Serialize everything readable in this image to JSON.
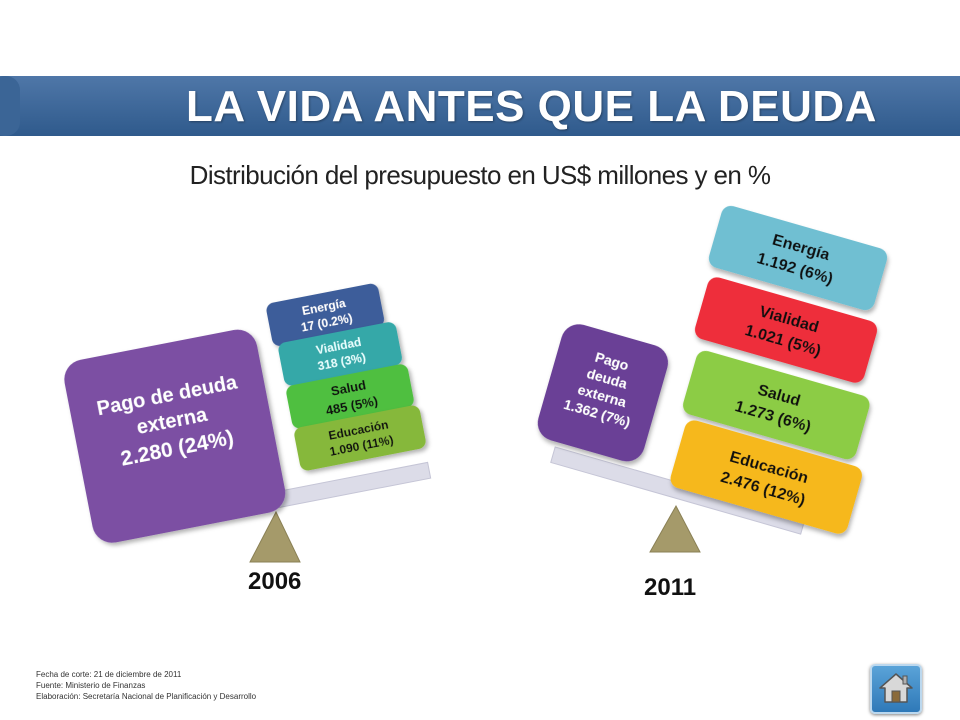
{
  "header": {
    "title": "LA VIDA ANTES QUE LA DEUDA",
    "subtitle": "Distribución del presupuesto en US$ millones y en %"
  },
  "scale_2006": {
    "year": "2006",
    "blocks": [
      {
        "line1": "Pago de deuda",
        "line2": "externa",
        "line3": "2.280 (24%)",
        "color": "#7b4fa3"
      },
      {
        "line1": "Energía",
        "line2": "17  (0.2%)",
        "color": "#3e5d9a"
      },
      {
        "line1": "Vialidad",
        "line2": "318   (3%)",
        "color": "#36a8a8"
      },
      {
        "line1": "Salud",
        "line2": "485   (5%)",
        "color": "#4fbf40"
      },
      {
        "line1": "Educación",
        "line2": "1.090  (11%)",
        "color": "#86b83a"
      }
    ]
  },
  "scale_2011": {
    "year": "2011",
    "blocks": [
      {
        "line1": "Pago",
        "line2": "deuda",
        "line3": "externa",
        "line4": "1.362  (7%)",
        "color": "#6a3f96"
      },
      {
        "line1": "Energía",
        "line2": "1.192  (6%)",
        "color": "#6fbfd2"
      },
      {
        "line1": "Vialidad",
        "line2": "1.021  (5%)",
        "color": "#ee2e3b"
      },
      {
        "line1": "Salud",
        "line2": "1.273  (6%)",
        "color": "#8ccc45"
      },
      {
        "line1": "Educación",
        "line2": "2.476  (12%)",
        "color": "#f6b81c"
      }
    ]
  },
  "footer": {
    "line1": "Fecha de corte: 21 de diciembre de 2011",
    "line2": "Fuente: Ministerio de Finanzas",
    "line3": "Elaboración: Secretaría Nacional de Planificación y Desarrollo"
  },
  "nav": {
    "home_icon": "home-icon",
    "home_color": "#2f79b8"
  },
  "colors": {
    "banner": "#3b6596",
    "beam": "#dcdce8",
    "fulcrum": "#a59a6a"
  }
}
